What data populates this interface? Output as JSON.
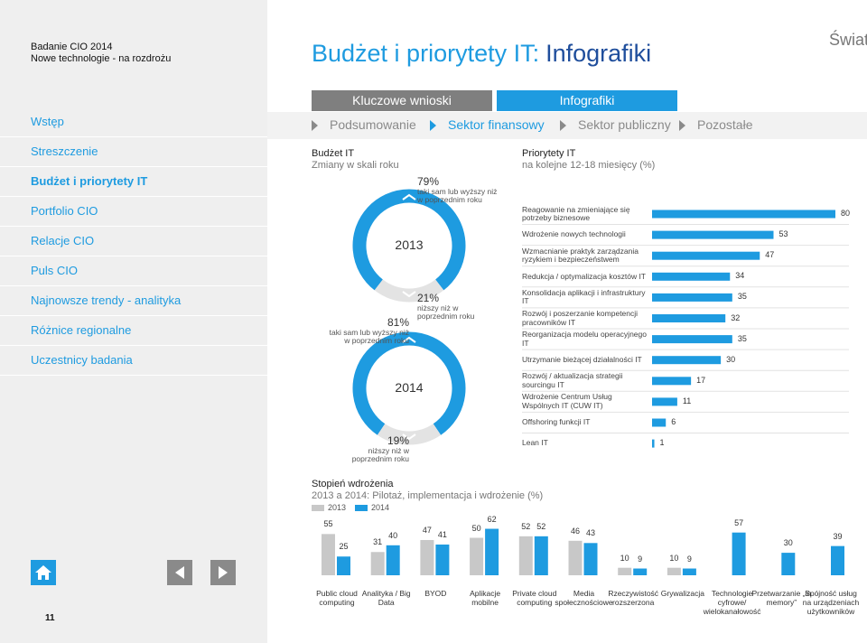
{
  "sidebar": {
    "title": "Badanie CIO 2014",
    "subtitle": "Nowe technologie - na rozdrożu",
    "nav": [
      "Wstęp",
      "Streszczenie",
      "Budżet i priorytety IT",
      "Portfolio CIO",
      "Relacje CIO",
      "Puls CIO",
      "Najnowsze trendy - analityka",
      "Różnice regionalne",
      "Uczestnicy badania"
    ],
    "page_number": "11"
  },
  "header": {
    "title": "Budżet i priorytety IT:",
    "title_highlight": "Infografiki",
    "region": "Świat"
  },
  "tabs": [
    "Kluczowe wnioski",
    "Infografiki"
  ],
  "subtabs": [
    "Podsumowanie",
    "Sektor finansowy",
    "Sektor publiczny",
    "Pozostałe"
  ],
  "budget_section": {
    "title": "Budżet IT",
    "subtitle": "Zmiany w skali roku"
  },
  "chart_data": [
    {
      "type": "donut",
      "title": "2013",
      "categories": [
        "taki sam lub wyższy niż w poprzednim roku",
        "niższy niż w poprzednim roku"
      ],
      "values": [
        79,
        21
      ],
      "value_labels": [
        "79%",
        "21%"
      ],
      "colors": [
        "#1e9be0",
        "#e3e3e3"
      ]
    },
    {
      "type": "donut",
      "title": "2014",
      "categories": [
        "taki sam lub wyższy niż w poprzednim roku",
        "niższy niż w poprzednim roku"
      ],
      "values": [
        81,
        19
      ],
      "value_labels": [
        "81%",
        "19%"
      ],
      "colors": [
        "#1e9be0",
        "#e3e3e3"
      ]
    },
    {
      "type": "hbar",
      "title": "Priorytety IT",
      "subtitle": "na kolejne 12-18 miesięcy (%)",
      "categories": [
        "Reagowanie na zmieniające się potrzeby biznesowe",
        "Wdrożenie nowych technologii",
        "Wzmacnianie praktyk zarządzania ryzykiem i bezpieczeństwem",
        "Redukcja / optymalizacja kosztów IT",
        "Konsolidacja aplikacji i infrastruktury IT",
        "Rozwój i poszerzanie kompetencji pracowników IT",
        "Reorganizacja modelu operacyjnego IT",
        "Utrzymanie bieżącej działalności IT",
        "Rozwój / aktualizacja strategii sourcingu IT",
        "Wdrożenie Centrum Usług Wspólnych IT (CUW IT)",
        "Offshoring funkcji IT",
        "Lean IT"
      ],
      "values": [
        80,
        53,
        47,
        34,
        35,
        32,
        35,
        30,
        17,
        11,
        6,
        1
      ],
      "color": "#1e9be0"
    },
    {
      "type": "bar",
      "title": "Stopień wdrożenia",
      "subtitle": "2013 a 2014: Pilotaż, implementacja i wdrożenie (%)",
      "categories": [
        "Public cloud computing",
        "Analityka / Big Data",
        "BYOD",
        "Aplikacje mobilne",
        "Private cloud computing",
        "Media społecznościowe",
        "Rzeczywistość rozszerzona",
        "Grywalizacja",
        "Technologie cyfrowe/ wielokanałowość",
        "Przetwarzanie „in memory”",
        "Spójność usług na urządzeniach użytkowników"
      ],
      "series": [
        {
          "name": "2013",
          "color": "#c8c8c8",
          "values": [
            55,
            31,
            47,
            50,
            52,
            46,
            10,
            10,
            null,
            null,
            null
          ]
        },
        {
          "name": "2014",
          "color": "#1e9be0",
          "values": [
            25,
            40,
            41,
            62,
            52,
            43,
            9,
            9,
            57,
            30,
            39
          ]
        }
      ]
    }
  ]
}
